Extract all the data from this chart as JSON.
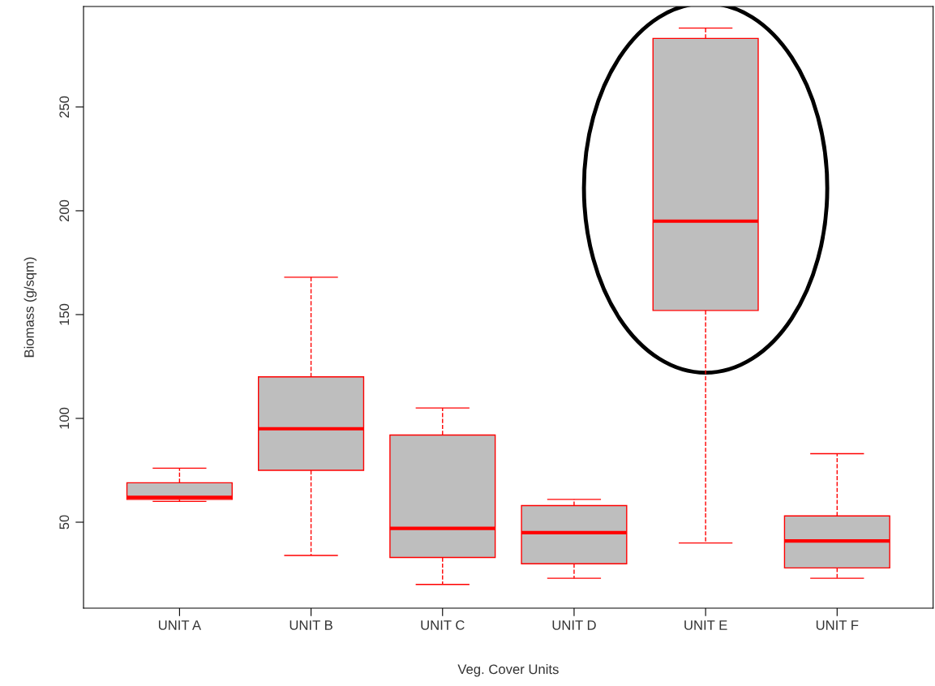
{
  "chart_data": {
    "type": "box",
    "xlabel": "Veg. Cover Units",
    "ylabel": "Biomass (g/sqm)",
    "categories": [
      "UNIT A",
      "UNIT B",
      "UNIT C",
      "UNIT D",
      "UNIT E",
      "UNIT F"
    ],
    "series": [
      {
        "color": "#ff0000",
        "boxes": [
          {
            "low": 60,
            "q1": 61,
            "median": 62,
            "q3": 69,
            "high": 76
          },
          {
            "low": 34,
            "q1": 75,
            "median": 95,
            "q3": 120,
            "high": 168
          },
          {
            "low": 20,
            "q1": 33,
            "median": 47,
            "q3": 92,
            "high": 105
          },
          {
            "low": 23,
            "q1": 30,
            "median": 45,
            "q3": 58,
            "high": 61
          },
          {
            "low": 40,
            "q1": 152,
            "median": 195,
            "q3": 283,
            "high": 288
          },
          {
            "low": 23,
            "q1": 28,
            "median": 41,
            "q3": 53,
            "high": 83
          }
        ]
      }
    ],
    "ylim": [
      8.6,
      298.4
    ],
    "yticks": [
      50,
      100,
      150,
      200,
      250
    ],
    "grid": false
  }
}
